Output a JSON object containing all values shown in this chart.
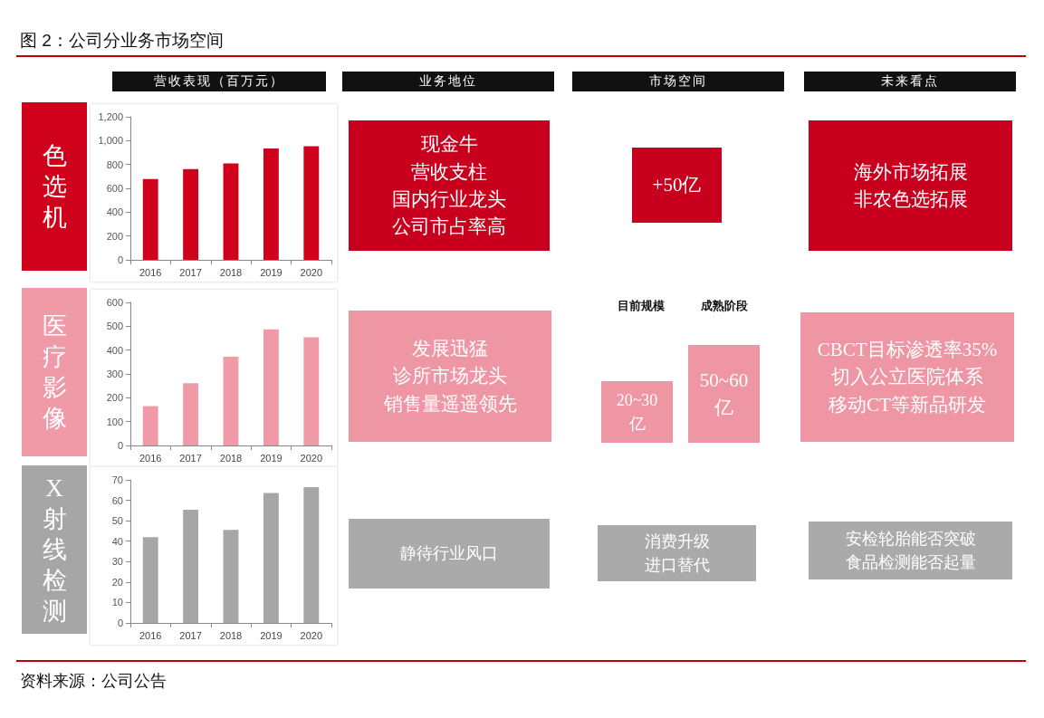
{
  "chart_data": [
    {
      "type": "other",
      "title": "图 2：公司分业务市场空间",
      "annotations": [
        "营收表现（百万元）",
        "业务地位",
        "市场空间",
        "未来看点",
        "资料来源：公司公告"
      ]
    },
    {
      "type": "bar",
      "title": "色选机",
      "categories": [
        "2016",
        "2017",
        "2018",
        "2019",
        "2020"
      ],
      "values": [
        678,
        761,
        808,
        934,
        954
      ],
      "color": "#d0021b",
      "ylim": [
        0,
        1200
      ],
      "yticks": [
        0,
        200,
        400,
        600,
        800,
        {
          "value": 1000,
          "label": "1,000"
        },
        {
          "value": 1200,
          "label": "1,200"
        }
      ],
      "grid": false
    },
    {
      "type": "other",
      "annotations": [
        "现金牛",
        "营收支柱",
        "国内行业龙头",
        "公司市占率高",
        "+50亿",
        "海外市场拓展",
        "非农色选拓展"
      ],
      "colors": [
        "#c8001e",
        "#c8001e",
        "#c8001e"
      ]
    },
    {
      "type": "bar",
      "title": "医疗影像",
      "categories": [
        "2016",
        "2017",
        "2018",
        "2019",
        "2020"
      ],
      "values": [
        165,
        261,
        372,
        487,
        454
      ],
      "color": "#ef9aa6",
      "ylim": [
        0,
        600
      ],
      "yticks": [
        0,
        100,
        200,
        300,
        400,
        500,
        600
      ],
      "grid": false
    },
    {
      "type": "other",
      "annotations": [
        "发展迅猛",
        "诊所市场龙头",
        "销售量遥遥领先",
        "目前规模",
        "20~30",
        "亿",
        "成熟阶段",
        "50~60",
        "亿",
        "CBCT目标渗透率35%",
        "切入公立医院体系",
        "移动CT等新品研发"
      ],
      "colors": [
        "#ee96a3",
        null,
        "#ee96a3",
        null,
        "#ee96a3",
        "#ee96a3"
      ]
    },
    {
      "type": "bar",
      "title": "X射线检测",
      "categories": [
        "2016",
        "2017",
        "2018",
        "2019",
        "2020"
      ],
      "values": [
        42,
        55.4,
        45.5,
        63.6,
        66.5
      ],
      "color": "#a6a6a6",
      "ylim": [
        0,
        70
      ],
      "yticks": [
        0,
        10,
        20,
        30,
        40,
        50,
        60,
        70
      ],
      "grid": false
    },
    {
      "type": "other",
      "annotations": [
        "静待行业风口",
        "消费升级",
        "进口替代",
        "安检轮胎能否突破",
        "食品检测能否起量"
      ],
      "colors": [
        "#aaaaaa",
        "#aaaaaa",
        "#aaaaaa"
      ]
    }
  ]
}
